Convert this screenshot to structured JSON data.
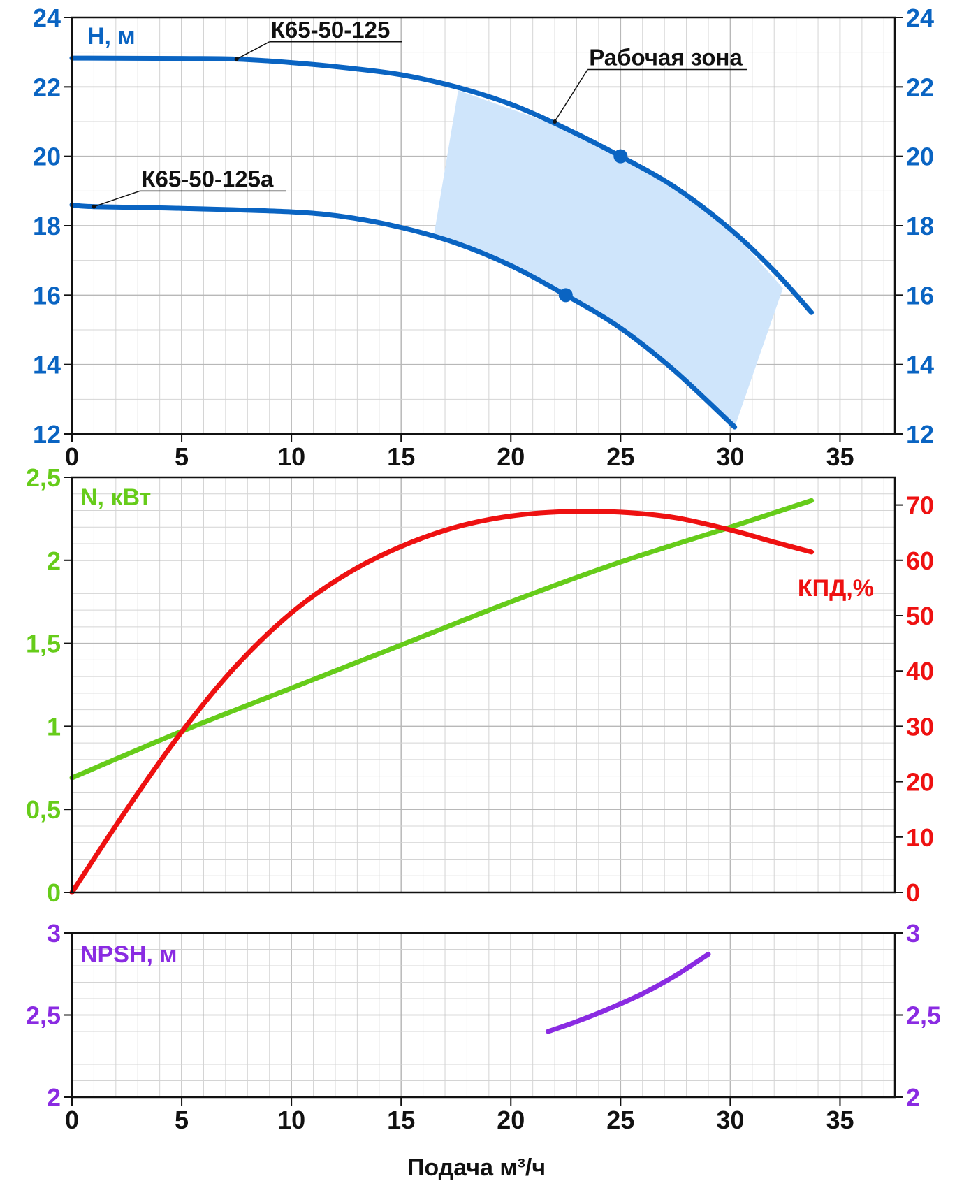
{
  "colors": {
    "head": "#0a64c2",
    "power": "#66cc1a",
    "efficiency": "#ee1111",
    "npsh": "#8a2be2",
    "zone": "#cfe5fb",
    "axis": "#111111"
  },
  "chart_data": [
    {
      "type": "line",
      "name": "head",
      "y_label": "H, м",
      "xlim": [
        0,
        37.5
      ],
      "ylim": [
        12,
        24
      ],
      "x_ticks": [
        0,
        5,
        10,
        15,
        20,
        25,
        30,
        35
      ],
      "x_tick_labels": [
        "0",
        "5",
        "10",
        "15",
        "20",
        "25",
        "30",
        "35"
      ],
      "y_ticks": [
        12,
        14,
        16,
        18,
        20,
        22,
        24
      ],
      "y_tick_labels": [
        "12",
        "14",
        "16",
        "18",
        "20",
        "22",
        "24"
      ],
      "grid": true,
      "series": [
        {
          "name": "К65-50-125",
          "x": [
            0,
            5,
            7.5,
            10,
            12.5,
            15,
            17.5,
            20,
            22.5,
            25,
            27.5,
            30,
            32,
            33.7
          ],
          "y": [
            22.83,
            22.82,
            22.8,
            22.7,
            22.55,
            22.35,
            22.0,
            21.5,
            20.8,
            20.0,
            19.1,
            17.9,
            16.7,
            15.5
          ]
        },
        {
          "name": "К65-50-125а",
          "x": [
            0,
            1,
            5,
            10,
            12.5,
            15,
            17.5,
            20,
            22.5,
            25,
            27.5,
            30.2
          ],
          "y": [
            18.6,
            18.55,
            18.5,
            18.4,
            18.25,
            17.95,
            17.5,
            16.85,
            16.0,
            15.05,
            13.8,
            12.2
          ]
        }
      ],
      "markers": [
        {
          "x": 25,
          "y": 20
        },
        {
          "x": 22.5,
          "y": 16
        }
      ],
      "zone": {
        "label": "Рабочая зона",
        "polygon": [
          [
            17.6,
            21.9
          ],
          [
            22.5,
            20.8
          ],
          [
            25,
            20.0
          ],
          [
            27.5,
            19.1
          ],
          [
            30,
            17.9
          ],
          [
            32.4,
            16.2
          ],
          [
            30.2,
            12.2
          ],
          [
            27.5,
            13.8
          ],
          [
            25,
            15.05
          ],
          [
            22.5,
            16.0
          ],
          [
            20,
            16.85
          ],
          [
            18,
            17.4
          ],
          [
            16.5,
            17.75
          ]
        ]
      },
      "annotations": [
        {
          "text": "К65-50-125",
          "point": [
            7.5,
            22.8
          ],
          "text_x": 9,
          "text_y": 23.3
        },
        {
          "text": "Рабочая зона",
          "point": [
            22,
            21.0
          ],
          "text_x": 23.5,
          "text_y": 22.5
        },
        {
          "text": "К65-50-125а",
          "point": [
            1,
            18.55
          ],
          "text_x": 3.1,
          "text_y": 19.0
        }
      ]
    },
    {
      "type": "line",
      "name": "power-efficiency",
      "y_label_left": "N, кВт",
      "y_label_right": "КПД,%",
      "xlim": [
        0,
        37.5
      ],
      "ylim_left": [
        0,
        2.5
      ],
      "ylim_right": [
        0,
        75
      ],
      "y_ticks_left": [
        0,
        0.5,
        1,
        1.5,
        2,
        2.5
      ],
      "y_tick_labels_left": [
        "0",
        "0,5",
        "1",
        "1,5",
        "2",
        "2,5"
      ],
      "y_ticks_right": [
        0,
        10,
        20,
        30,
        40,
        50,
        60,
        70
      ],
      "y_tick_labels_right": [
        "0",
        "10",
        "20",
        "30",
        "40",
        "50",
        "60",
        "70"
      ],
      "grid": true,
      "series": [
        {
          "name": "N",
          "axis": "left",
          "x": [
            0,
            5,
            10,
            15,
            20,
            25,
            30,
            33.7
          ],
          "y": [
            0.69,
            0.97,
            1.23,
            1.49,
            1.75,
            1.99,
            2.2,
            2.36
          ]
        },
        {
          "name": "КПД",
          "axis": "right",
          "x": [
            0,
            2.5,
            5,
            7.5,
            10,
            12.5,
            15,
            17.5,
            20,
            22.5,
            25,
            27.5,
            30,
            32,
            33.7
          ],
          "y": [
            0,
            15,
            29,
            41,
            50.5,
            57.5,
            62.5,
            66,
            68,
            68.8,
            68.7,
            67.7,
            65.5,
            63.3,
            61.5
          ]
        }
      ]
    },
    {
      "type": "line",
      "name": "npsh",
      "y_label": "NPSH, м",
      "xlim": [
        0,
        37.5
      ],
      "ylim": [
        2,
        3
      ],
      "x_ticks": [
        0,
        5,
        10,
        15,
        20,
        25,
        30,
        35
      ],
      "x_tick_labels": [
        "0",
        "5",
        "10",
        "15",
        "20",
        "25",
        "30",
        "35"
      ],
      "y_ticks": [
        2,
        2.5,
        3
      ],
      "y_tick_labels": [
        "2",
        "2,5",
        "3"
      ],
      "x_label": "Подача м³/ч",
      "grid": true,
      "series": [
        {
          "name": "NPSH",
          "x": [
            21.7,
            23,
            24.5,
            26,
            27.5,
            29
          ],
          "y": [
            2.4,
            2.46,
            2.54,
            2.63,
            2.74,
            2.87
          ]
        }
      ]
    }
  ]
}
